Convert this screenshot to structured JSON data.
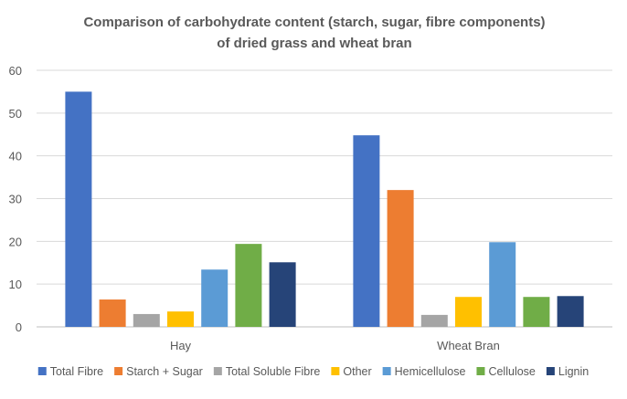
{
  "chart_data": {
    "type": "bar",
    "title": [
      "Comparison of carbohydrate content (starch, sugar, fibre components)",
      "of dried grass and wheat bran"
    ],
    "xlabel": "",
    "ylabel": "",
    "ylim": [
      0,
      60
    ],
    "yticks": [
      0,
      10,
      20,
      30,
      40,
      50,
      60
    ],
    "categories": [
      "Hay",
      "Wheat Bran"
    ],
    "grid": true,
    "legend": "bottom",
    "series": [
      {
        "name": "Total Fibre",
        "color": "#4472C4",
        "values": [
          55,
          44.8
        ]
      },
      {
        "name": "Starch + Sugar",
        "color": "#ED7D31",
        "values": [
          6.4,
          32
        ]
      },
      {
        "name": "Total Soluble Fibre",
        "color": "#A5A5A5",
        "values": [
          3,
          2.8
        ]
      },
      {
        "name": "Other",
        "color": "#FFC000",
        "values": [
          3.6,
          7
        ]
      },
      {
        "name": "Hemicellulose",
        "color": "#5B9BD5",
        "values": [
          13.4,
          19.8
        ]
      },
      {
        "name": "Cellulose",
        "color": "#70AD47",
        "values": [
          19.4,
          7
        ]
      },
      {
        "name": "Lignin",
        "color": "#264478",
        "values": [
          15.1,
          7.2
        ]
      }
    ]
  }
}
